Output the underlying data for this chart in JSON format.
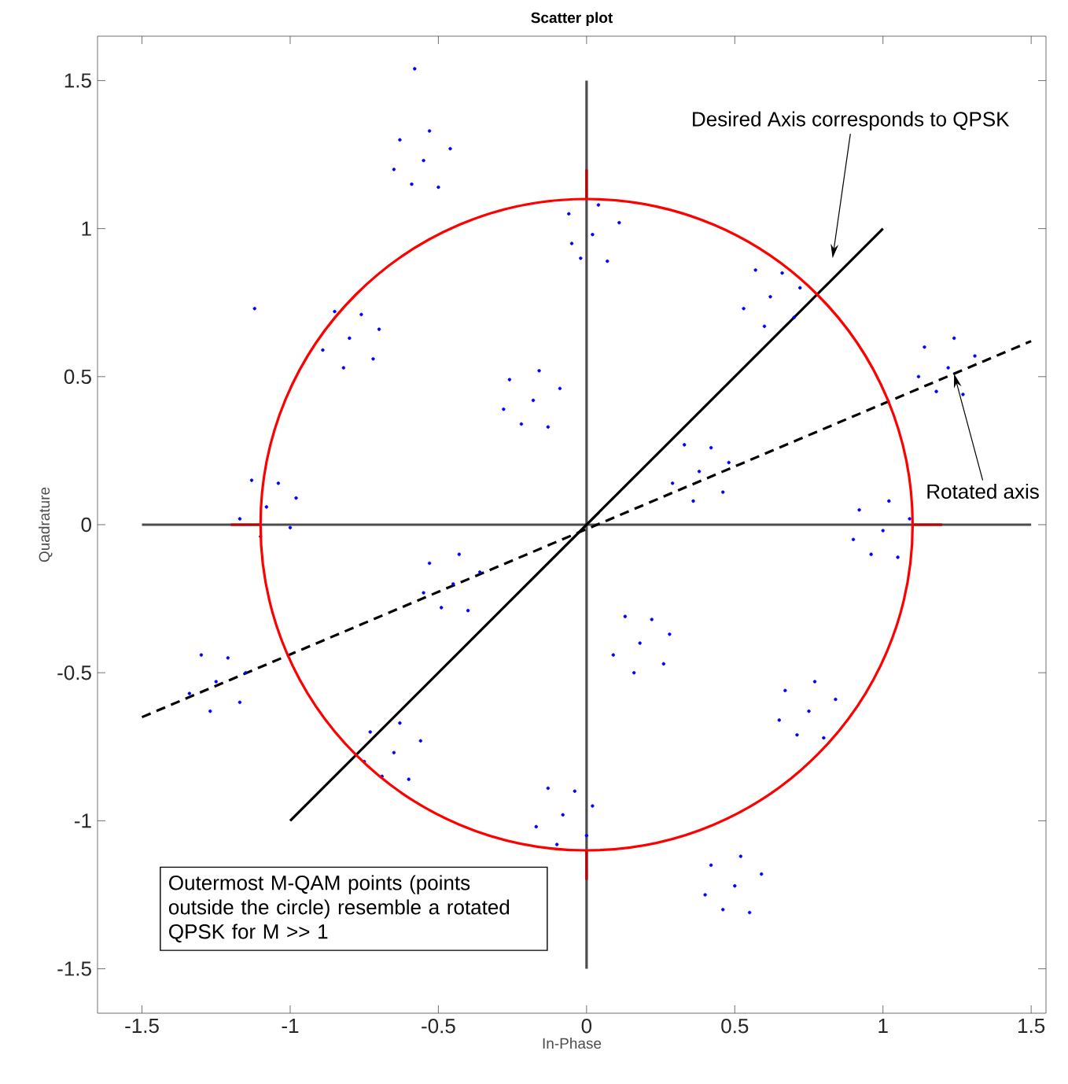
{
  "chart_data": {
    "type": "scatter",
    "title": "Scatter plot",
    "xlabel": "In-Phase",
    "ylabel": "Quadrature",
    "xlim": [
      -1.65,
      1.55
    ],
    "ylim": [
      -1.65,
      1.65
    ],
    "xticks": [
      -1.5,
      -1,
      -0.5,
      0,
      0.5,
      1,
      1.5
    ],
    "yticks": [
      -1.5,
      -1,
      -0.5,
      0,
      0.5,
      1,
      1.5
    ],
    "series": [
      {
        "type": "line",
        "color": "#4d4d4d",
        "line_style": "solid",
        "marker": "none",
        "x": [
          -1.5,
          1.5
        ],
        "values": [
          0,
          0
        ]
      },
      {
        "type": "line",
        "color": "#4d4d4d",
        "line_style": "solid",
        "marker": "none",
        "x": [
          0,
          0
        ],
        "values": [
          -1.5,
          1.5
        ]
      },
      {
        "type": "line",
        "color": "#c00000",
        "line_style": "solid",
        "marker": "none",
        "x": [
          1.1,
          1.2
        ],
        "values": [
          0,
          0
        ]
      },
      {
        "type": "line",
        "color": "#c00000",
        "line_style": "solid",
        "marker": "none",
        "x": [
          -1.2,
          -1.1
        ],
        "values": [
          0,
          0
        ]
      },
      {
        "type": "line",
        "color": "#c00000",
        "line_style": "solid",
        "marker": "none",
        "x": [
          0,
          0
        ],
        "values": [
          1.1,
          1.2
        ]
      },
      {
        "type": "line",
        "color": "#c00000",
        "line_style": "solid",
        "marker": "none",
        "x": [
          0,
          0
        ],
        "values": [
          -1.2,
          -1.1
        ]
      },
      {
        "type": "line",
        "color": "#000000",
        "line_style": "solid",
        "marker": "none",
        "x": [
          -1,
          1
        ],
        "values": [
          -1,
          1
        ]
      },
      {
        "type": "line",
        "color": "#000000",
        "line_style": "dashed",
        "marker": "none",
        "x": [
          -1.5,
          1.5
        ],
        "values": [
          -0.65,
          0.62
        ]
      },
      {
        "color": "#0000ff",
        "marker": "circle",
        "x": [
          -0.55,
          -0.46,
          -0.63,
          -0.5,
          -0.65,
          -0.53,
          -0.59,
          0.02,
          0.11,
          -0.06,
          0.07,
          -0.05,
          0.04,
          -0.02,
          0.62,
          0.53,
          0.7,
          0.57,
          0.72,
          0.6,
          0.66,
          1.22,
          1.31,
          1.14,
          1.27,
          1.12,
          1.24,
          1.18,
          -0.8,
          -0.89,
          -0.72,
          -0.85,
          -0.7,
          -0.82,
          -0.76,
          -0.18,
          -0.09,
          -0.26,
          -0.13,
          -0.28,
          -0.16,
          -0.22,
          0.38,
          0.29,
          0.46,
          0.33,
          0.48,
          0.36,
          0.42,
          1.0,
          1.09,
          0.92,
          1.05,
          0.9,
          1.02,
          0.96,
          -1.08,
          -1.17,
          -1.0,
          -1.13,
          -0.98,
          -1.1,
          -1.04,
          -0.45,
          -0.36,
          -0.53,
          -0.4,
          -0.55,
          -0.43,
          -0.49,
          0.18,
          0.09,
          0.26,
          0.13,
          0.28,
          0.16,
          0.22,
          0.75,
          0.84,
          0.67,
          0.8,
          0.65,
          0.77,
          0.71,
          -1.25,
          -1.34,
          -1.17,
          -1.3,
          -1.15,
          -1.27,
          -1.21,
          -0.65,
          -0.56,
          -0.73,
          -0.6,
          -0.75,
          -0.63,
          -0.69,
          -0.08,
          -0.17,
          0.0,
          -0.13,
          0.02,
          -0.1,
          -0.04,
          0.5,
          0.59,
          0.42,
          0.55,
          0.4,
          0.52,
          0.46,
          -0.58,
          -1.12
        ],
        "values": [
          1.23,
          1.27,
          1.3,
          1.14,
          1.2,
          1.33,
          1.15,
          0.98,
          1.02,
          1.05,
          0.89,
          0.95,
          1.08,
          0.9,
          0.77,
          0.73,
          0.7,
          0.86,
          0.8,
          0.67,
          0.85,
          0.53,
          0.57,
          0.6,
          0.44,
          0.5,
          0.63,
          0.45,
          0.63,
          0.59,
          0.56,
          0.72,
          0.66,
          0.53,
          0.71,
          0.42,
          0.46,
          0.49,
          0.33,
          0.39,
          0.52,
          0.34,
          0.18,
          0.14,
          0.11,
          0.27,
          0.21,
          0.08,
          0.26,
          -0.02,
          0.02,
          0.05,
          -0.11,
          -0.05,
          0.08,
          -0.1,
          0.06,
          0.02,
          -0.01,
          0.15,
          0.09,
          -0.04,
          0.14,
          -0.2,
          -0.16,
          -0.13,
          -0.29,
          -0.23,
          -0.1,
          -0.28,
          -0.4,
          -0.44,
          -0.47,
          -0.31,
          -0.37,
          -0.5,
          -0.32,
          -0.63,
          -0.59,
          -0.56,
          -0.72,
          -0.66,
          -0.53,
          -0.71,
          -0.53,
          -0.57,
          -0.6,
          -0.44,
          -0.5,
          -0.63,
          -0.45,
          -0.77,
          -0.73,
          -0.7,
          -0.86,
          -0.8,
          -0.67,
          -0.85,
          -0.98,
          -1.02,
          -1.05,
          -0.89,
          -0.95,
          -1.08,
          -0.9,
          -1.22,
          -1.18,
          -1.15,
          -1.31,
          -1.25,
          -1.12,
          -1.3,
          1.54,
          0.73
        ]
      }
    ],
    "annotations": [
      "Desired Axis corresponds to QPSK",
      {
        "text": "Rotated axis",
        "x": 1.24,
        "y": 0.51
      },
      "Outermost M-QAM points (points outside the circle) resemble a rotated QPSK for M >> 1"
    ]
  }
}
